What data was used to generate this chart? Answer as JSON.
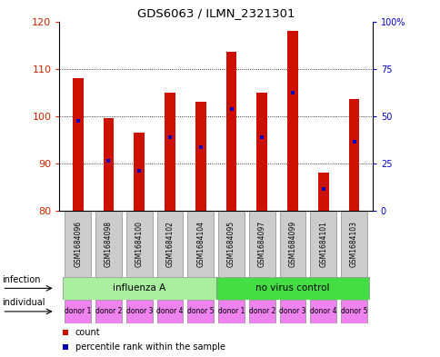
{
  "title": "GDS6063 / ILMN_2321301",
  "samples": [
    "GSM1684096",
    "GSM1684098",
    "GSM1684100",
    "GSM1684102",
    "GSM1684104",
    "GSM1684095",
    "GSM1684097",
    "GSM1684099",
    "GSM1684101",
    "GSM1684103"
  ],
  "bar_bottoms": [
    80,
    80,
    80,
    80,
    80,
    80,
    80,
    80,
    80,
    80
  ],
  "bar_tops": [
    108,
    99.5,
    96.5,
    105,
    103,
    113.5,
    105,
    118,
    88,
    103.5
  ],
  "blue_dot_y": [
    99,
    90.5,
    88.5,
    95.5,
    93.5,
    101.5,
    95.5,
    105,
    84.5,
    94.5
  ],
  "ylim_left": [
    80,
    120
  ],
  "ylim_right": [
    0,
    100
  ],
  "yticks_left": [
    80,
    90,
    100,
    110,
    120
  ],
  "yticks_right": [
    0,
    25,
    50,
    75,
    100
  ],
  "ytick_labels_right": [
    "0",
    "25",
    "50",
    "75",
    "100%"
  ],
  "infection_groups": [
    {
      "label": "influenza A",
      "start": 0,
      "end": 5,
      "color": "#AAEEA0"
    },
    {
      "label": "no virus control",
      "start": 5,
      "end": 10,
      "color": "#44DD44"
    }
  ],
  "individual_labels": [
    "donor 1",
    "donor 2",
    "donor 3",
    "donor 4",
    "donor 5",
    "donor 1",
    "donor 2",
    "donor 3",
    "donor 4",
    "donor 5"
  ],
  "individual_color": "#EE82EE",
  "bar_color": "#CC1100",
  "blue_color": "#0000BB",
  "bg_color": "#FFFFFF",
  "axis_label_color_left": "#CC2200",
  "axis_label_color_right": "#0000CC",
  "infection_row_label": "infection",
  "individual_row_label": "individual",
  "legend_count": "count",
  "legend_percentile": "percentile rank within the sample",
  "grid_color": "#000000",
  "sample_box_color": "#CCCCCC",
  "border_color": "#888888"
}
